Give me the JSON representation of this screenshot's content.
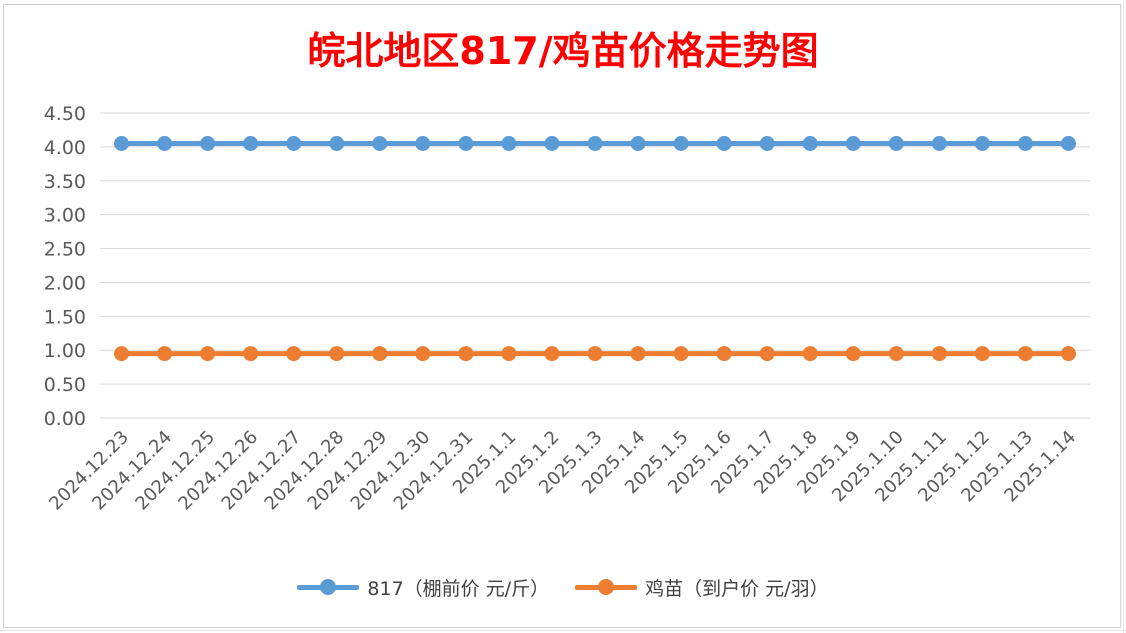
{
  "chart_data": {
    "type": "line",
    "title": "皖北地区817/鸡苗价格走势图",
    "categories": [
      "2024.12.23",
      "2024.12.24",
      "2024.12.25",
      "2024.12.26",
      "2024.12.27",
      "2024.12.28",
      "2024.12.29",
      "2024.12.30",
      "2024.12.31",
      "2025.1.1",
      "2025.1.2",
      "2025.1.3",
      "2025.1.4",
      "2025.1.5",
      "2025.1.6",
      "2025.1.7",
      "2025.1.8",
      "2025.1.9",
      "2025.1.10",
      "2025.1.11",
      "2025.1.12",
      "2025.1.13",
      "2025.1.14"
    ],
    "series": [
      {
        "name": "817（棚前价 元/斤）",
        "color": "#5b9bd5",
        "values": [
          4.05,
          4.05,
          4.05,
          4.05,
          4.05,
          4.05,
          4.05,
          4.05,
          4.05,
          4.05,
          4.05,
          4.05,
          4.05,
          4.05,
          4.05,
          4.05,
          4.05,
          4.05,
          4.05,
          4.05,
          4.05,
          4.05,
          4.05
        ]
      },
      {
        "name": "鸡苗（到户价 元/羽）",
        "color": "#ed7d31",
        "values": [
          0.95,
          0.95,
          0.95,
          0.95,
          0.95,
          0.95,
          0.95,
          0.95,
          0.95,
          0.95,
          0.95,
          0.95,
          0.95,
          0.95,
          0.95,
          0.95,
          0.95,
          0.95,
          0.95,
          0.95,
          0.95,
          0.95,
          0.95
        ]
      }
    ],
    "yticks": [
      "0.00",
      "0.50",
      "1.00",
      "1.50",
      "2.00",
      "2.50",
      "3.00",
      "3.50",
      "4.00",
      "4.50"
    ],
    "ylim": [
      0,
      4.5
    ],
    "grid": true,
    "legend_position": "bottom"
  }
}
